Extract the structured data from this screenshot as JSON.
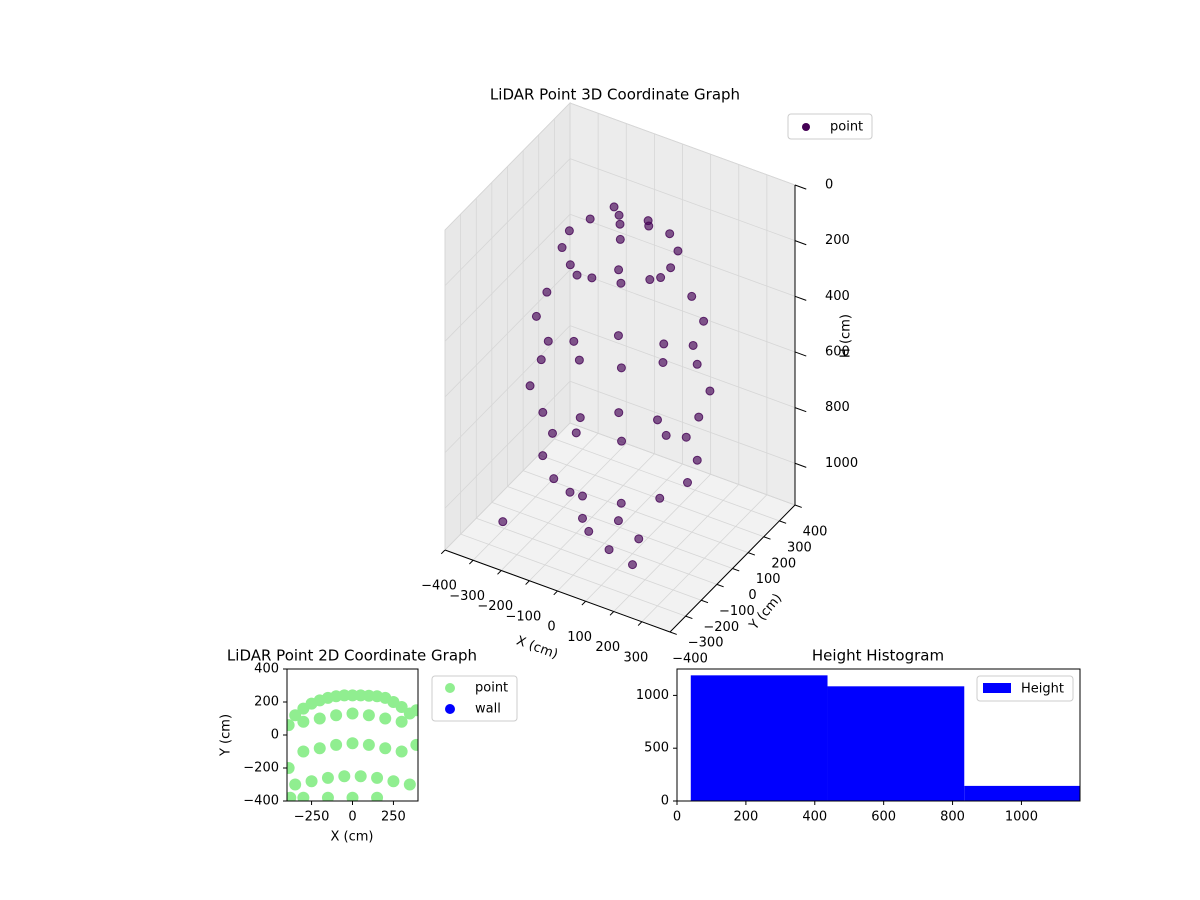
{
  "chart_data": [
    {
      "type": "scatter3d",
      "title": "LiDAR Point 3D Coordinate Graph",
      "xlabel": "X (cm)",
      "ylabel": "Y (cm)",
      "zlabel": "H (cm)",
      "xlim": [
        -400,
        400
      ],
      "ylim": [
        -400,
        400
      ],
      "zlim": [
        0,
        1150
      ],
      "zinvert": true,
      "grid": true,
      "legend": "upper right",
      "xticks": [
        {
          "value": -400,
          "label": "−400"
        },
        {
          "value": -300,
          "label": "−300"
        },
        {
          "value": -200,
          "label": "−200"
        },
        {
          "value": -100,
          "label": "−100"
        },
        0,
        100,
        200,
        300
      ],
      "yticks": [
        {
          "value": -400,
          "label": "−400"
        },
        {
          "value": -300,
          "label": "−300"
        },
        {
          "value": -200,
          "label": "−200"
        },
        {
          "value": -100,
          "label": "−100"
        },
        0,
        100,
        200,
        300,
        400
      ],
      "zticks": [
        0,
        200,
        400,
        600,
        800,
        1000
      ],
      "series": [
        {
          "name": "point",
          "color": "#440154",
          "x": [
            180,
            156,
            90,
            0,
            -90,
            -156,
            -180,
            -156,
            -90,
            0,
            90,
            156,
            260,
            225,
            130,
            0,
            -130,
            -225,
            -260,
            -225,
            -130,
            0,
            130,
            225,
            280,
            242,
            140,
            0,
            -140,
            -242,
            -280,
            -242,
            -140,
            0,
            140,
            242,
            240,
            208,
            120,
            0,
            -120,
            -208,
            -240,
            -208,
            -120,
            0,
            120,
            208,
            0,
            80,
            -60,
            40,
            50,
            -50,
            150,
            -150,
            0,
            100,
            200,
            -250
          ],
          "y": [
            0,
            90,
            156,
            180,
            156,
            90,
            0,
            -90,
            -156,
            -180,
            -156,
            -90,
            0,
            130,
            225,
            260,
            225,
            130,
            0,
            -130,
            -225,
            -260,
            -225,
            -130,
            0,
            140,
            242,
            280,
            242,
            140,
            0,
            -140,
            -242,
            -280,
            -242,
            -140,
            0,
            120,
            208,
            240,
            208,
            120,
            0,
            -120,
            -208,
            -240,
            -208,
            -120,
            0,
            40,
            70,
            -70,
            -100,
            -150,
            -150,
            -50,
            -200,
            -250,
            -280,
            -300
          ],
          "z": [
            150,
            150,
            150,
            150,
            150,
            150,
            150,
            150,
            150,
            150,
            150,
            150,
            400,
            400,
            400,
            400,
            400,
            400,
            400,
            400,
            400,
            400,
            400,
            400,
            650,
            650,
            650,
            650,
            650,
            650,
            650,
            650,
            650,
            650,
            650,
            650,
            900,
            900,
            900,
            900,
            900,
            900,
            900,
            900,
            900,
            900,
            900,
            900,
            60,
            60,
            60,
            60,
            1050,
            1050,
            1050,
            1050,
            1050,
            1050,
            1050,
            1050
          ]
        }
      ]
    },
    {
      "type": "scatter",
      "title": "LiDAR Point 2D Coordinate Graph",
      "xlabel": "X (cm)",
      "ylabel": "Y (cm)",
      "xlim": [
        -400,
        400
      ],
      "ylim": [
        -400,
        400
      ],
      "xticks": [
        {
          "value": -250,
          "label": "−250"
        },
        0,
        250
      ],
      "yticks": [
        {
          "value": -400,
          "label": "−400"
        },
        {
          "value": -200,
          "label": "−200"
        },
        0,
        200,
        400
      ],
      "legend": "outside right",
      "series": [
        {
          "name": "point",
          "color": "#90ee90",
          "x": [
            -390,
            -390,
            -380,
            -350,
            -300,
            -250,
            -200,
            -150,
            -100,
            -50,
            0,
            50,
            100,
            150,
            200,
            250,
            300,
            350,
            390,
            390,
            -300,
            -200,
            -100,
            0,
            100,
            200,
            300,
            -300,
            -200,
            -100,
            0,
            100,
            200,
            300,
            -350,
            -250,
            -150,
            -50,
            50,
            150,
            250,
            350,
            -300,
            -150,
            0,
            150
          ],
          "y": [
            60,
            -200,
            -380,
            120,
            160,
            190,
            210,
            225,
            235,
            240,
            240,
            240,
            238,
            235,
            225,
            200,
            170,
            130,
            150,
            -60,
            80,
            100,
            120,
            130,
            120,
            100,
            80,
            -100,
            -80,
            -60,
            -50,
            -60,
            -80,
            -100,
            -300,
            -280,
            -260,
            -250,
            -250,
            -260,
            -280,
            -300,
            -380,
            -380,
            -380,
            -380
          ]
        },
        {
          "name": "wall",
          "color": "#0000ff",
          "x": [],
          "y": []
        }
      ]
    },
    {
      "type": "histogram",
      "title": "Height Histogram",
      "legend": "upper right",
      "xlim": [
        0,
        1170
      ],
      "ylim": [
        0,
        1250
      ],
      "xticks": [
        0,
        200,
        400,
        600,
        800,
        1000
      ],
      "yticks": [
        0,
        500,
        1000
      ],
      "series": [
        {
          "name": "Height",
          "color": "#0000ff",
          "bins": [
            40,
            437,
            834,
            1231
          ],
          "values": [
            1190,
            1086,
            143
          ]
        }
      ]
    }
  ]
}
